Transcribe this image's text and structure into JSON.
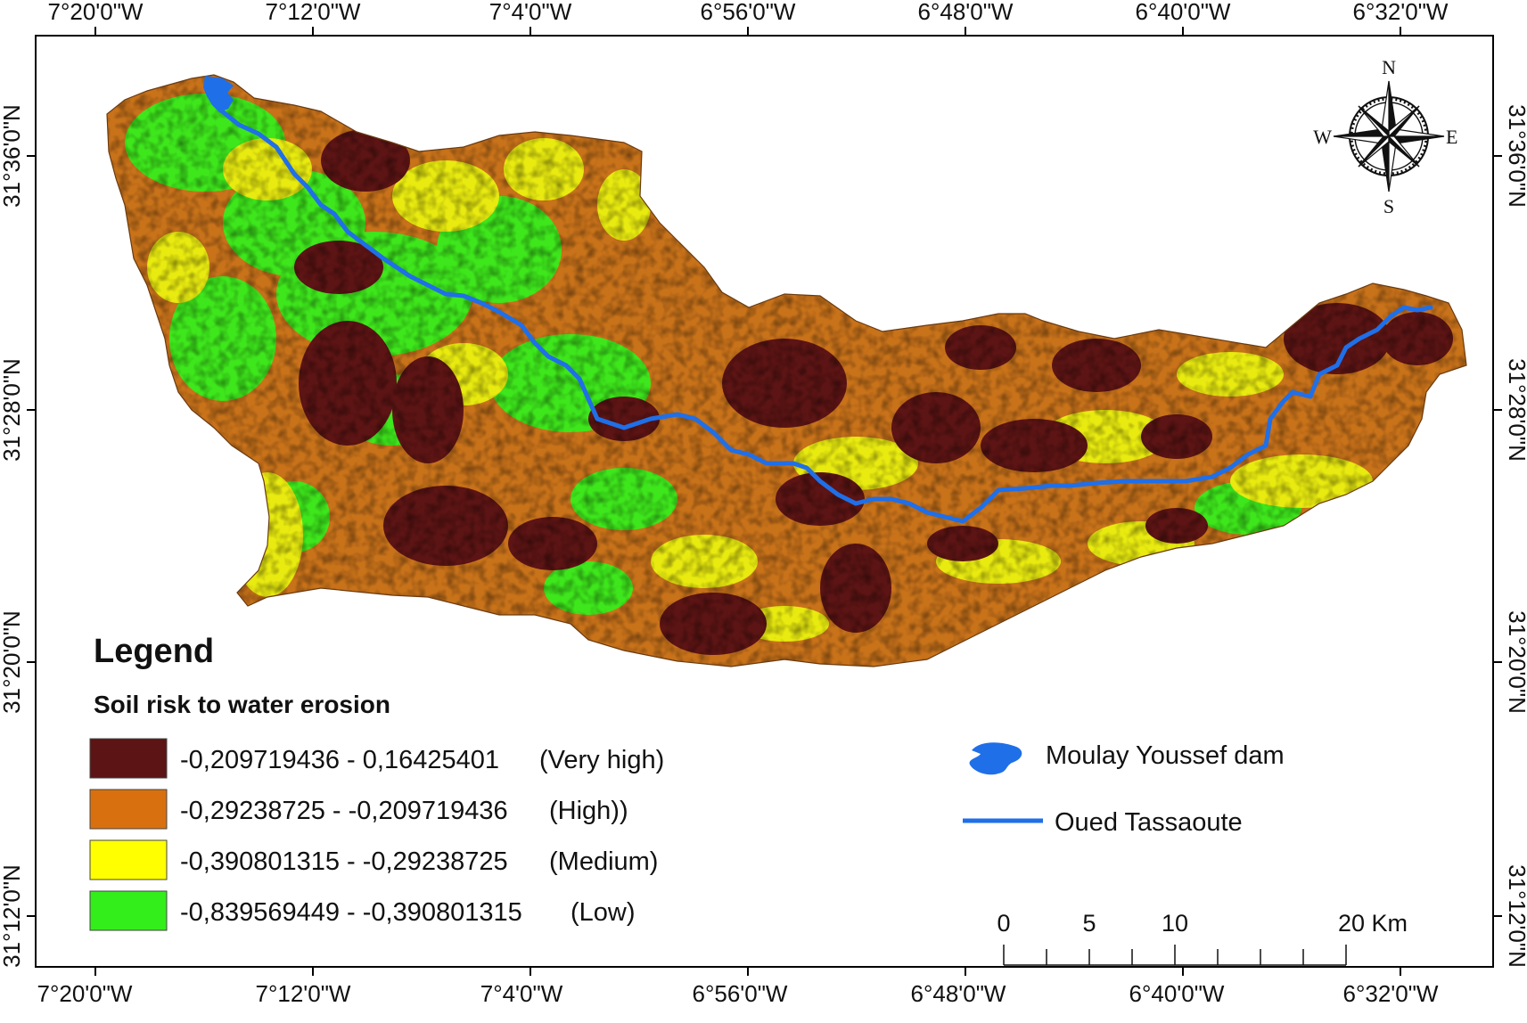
{
  "coordinates": {
    "top_longitudes": [
      "7°20'0\"W",
      "7°12'0\"W",
      "7°4'0\"W",
      "6°56'0\"W",
      "6°48'0\"W",
      "6°40'0\"W",
      "6°32'0\"W"
    ],
    "bottom_longitudes": [
      "7°20'0\"W",
      "7°12'0\"W",
      "7°4'0\"W",
      "6°56'0\"W",
      "6°48'0\"W",
      "6°40'0\"W",
      "6°32'0\"W"
    ],
    "left_latitudes": [
      "31°36'0\"N",
      "31°28'0\"N",
      "31°20'0\"N",
      "31°12'0\"N"
    ],
    "right_latitudes": [
      "31°36'0\"N",
      "31°28'0\"N",
      "31°20'0\"N",
      "31°12'0\"N"
    ]
  },
  "compass": {
    "north": "N",
    "south": "S",
    "east": "E",
    "west": "W"
  },
  "legend": {
    "title": "Legend",
    "subtitle": "Soil risk to water erosion",
    "classes": [
      {
        "range": "-0,209719436 - 0,16425401",
        "label": "(Very high)",
        "color": "#5c1414"
      },
      {
        "range": "-0,29238725 - -0,209719436",
        "label": "(High))",
        "color": "#d9700f"
      },
      {
        "range": "-0,390801315 - -0,29238725",
        "label": "(Medium)",
        "color": "#ffff00"
      },
      {
        "range": "-0,839569449 - -0,390801315",
        "label": "(Low)",
        "color": "#33ee1a"
      }
    ],
    "dam_label": "Moulay Youssef dam",
    "river_label": "Oued Tassaoute",
    "water_color": "#1f6fe8"
  },
  "scale_bar": {
    "ticks": [
      "0",
      "5",
      "10",
      "20 Km"
    ]
  }
}
